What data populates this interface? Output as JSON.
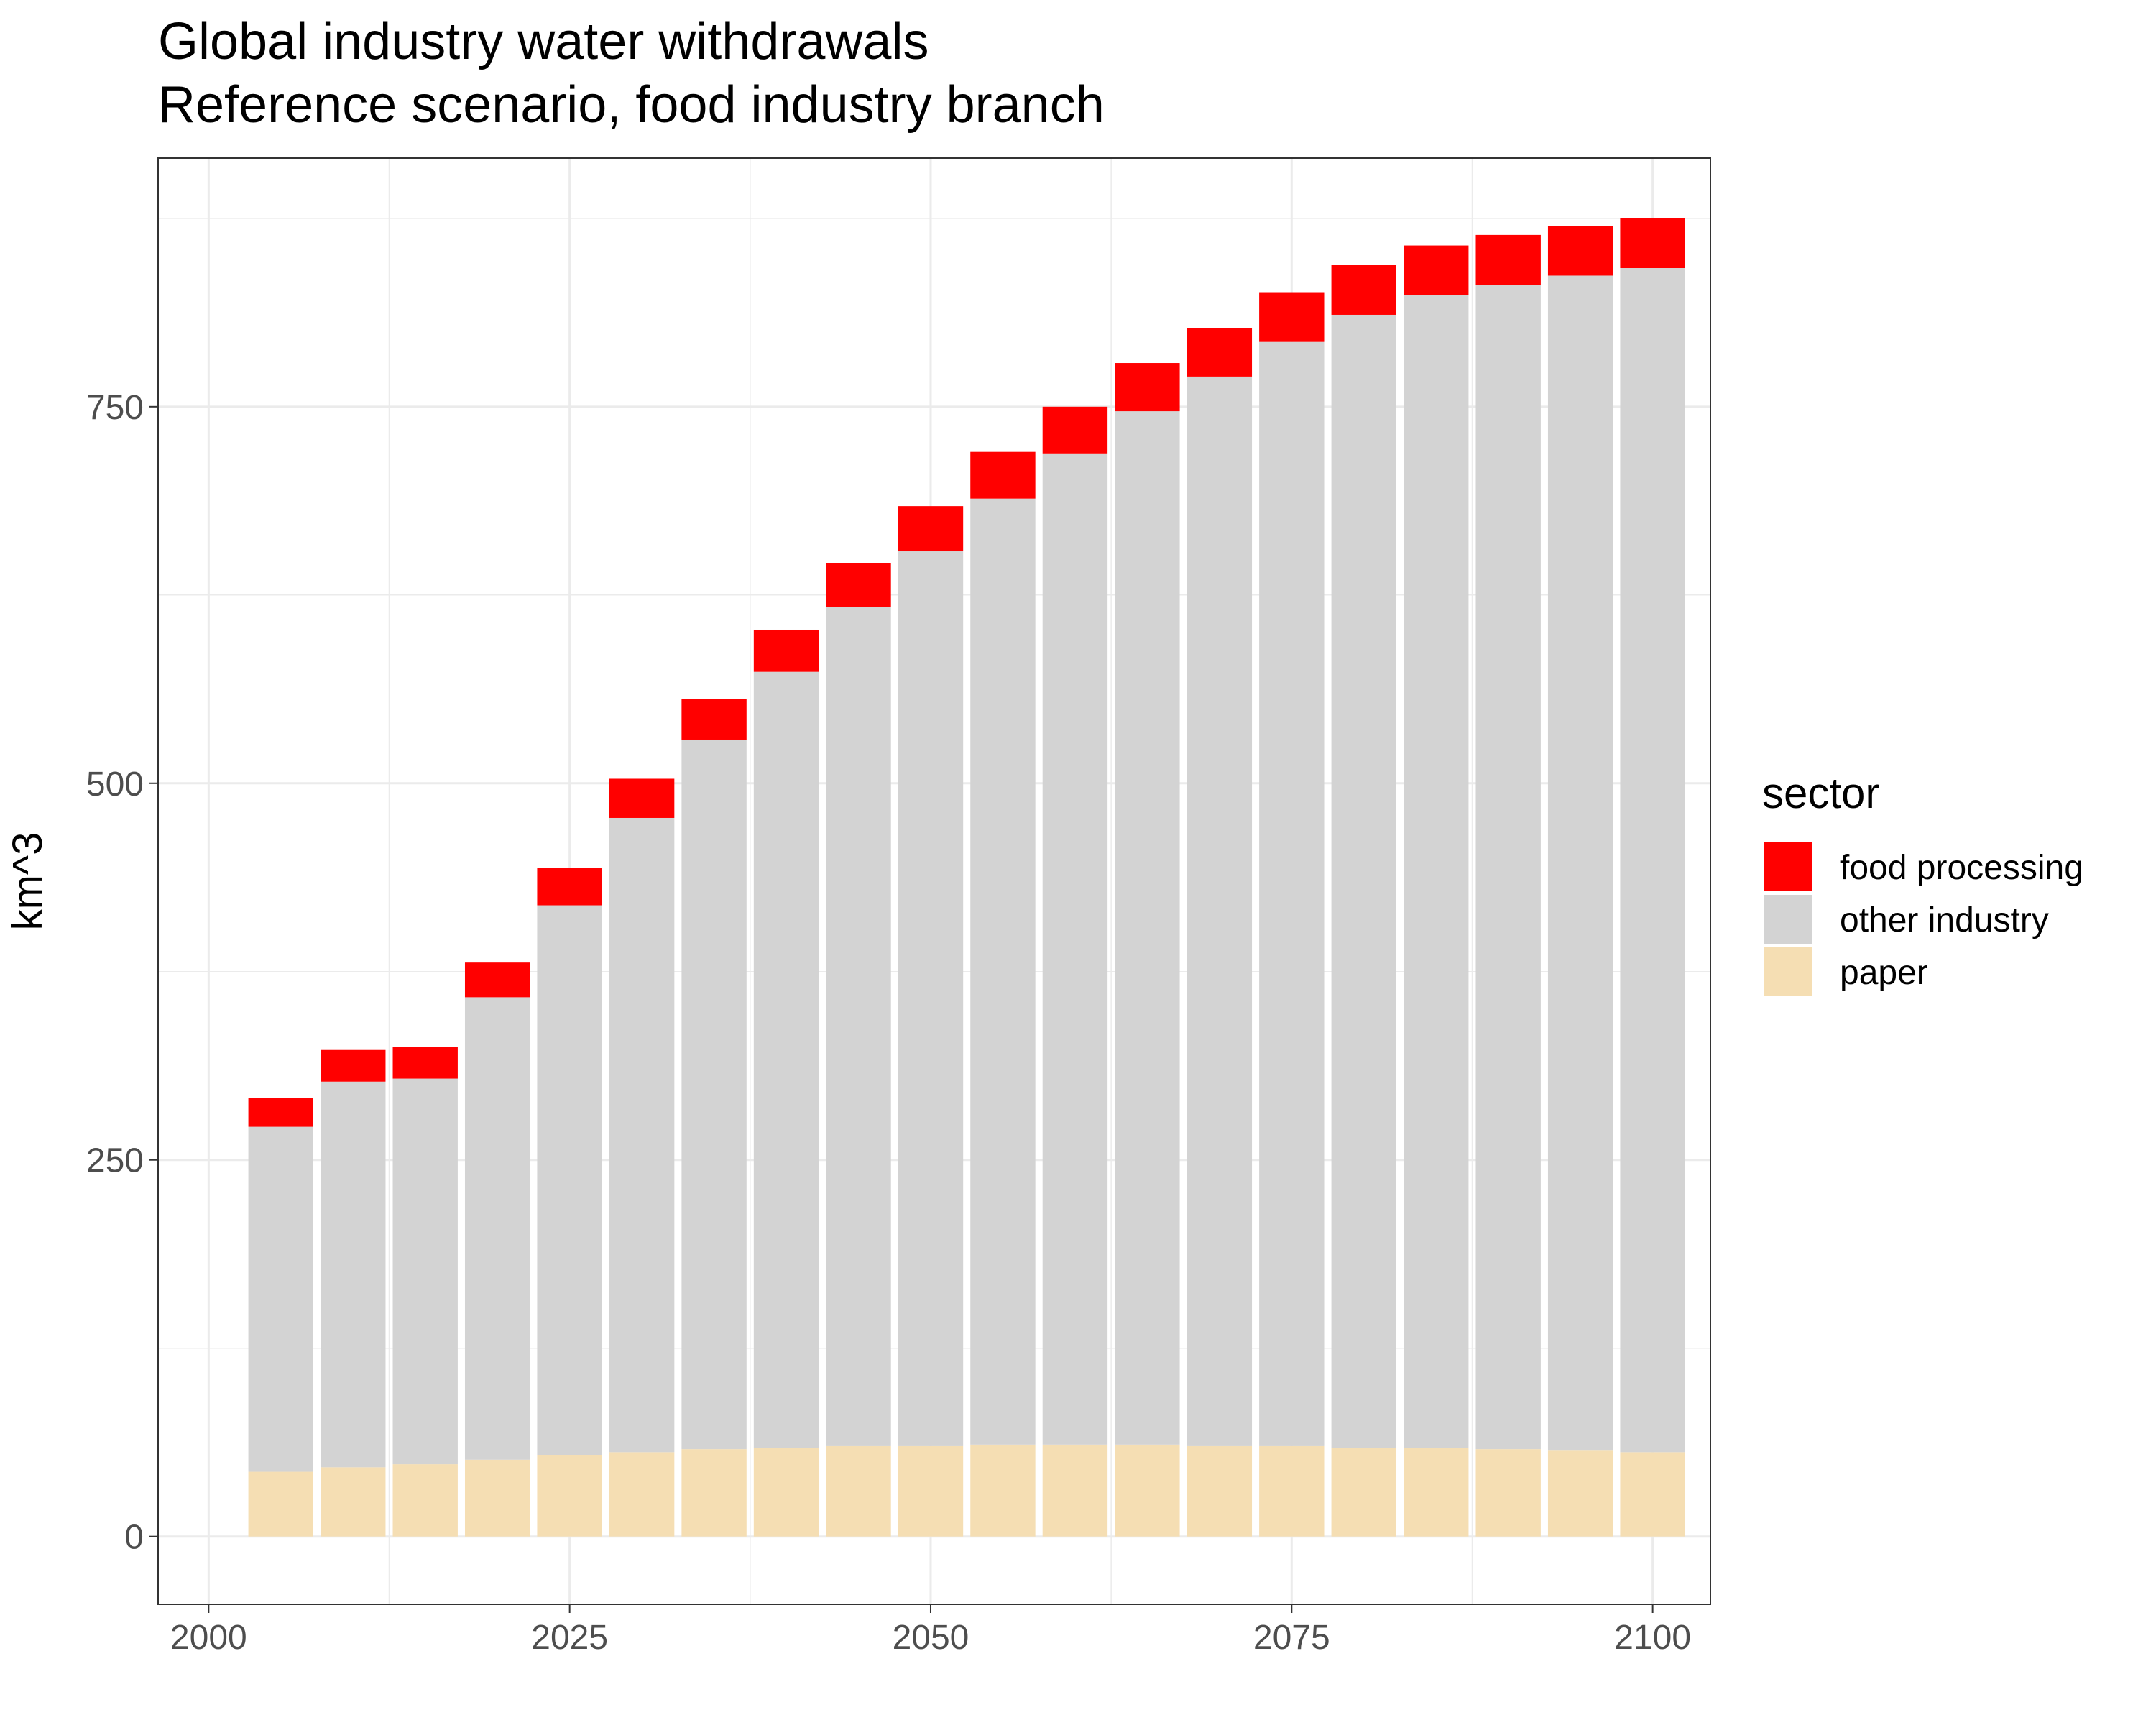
{
  "chart_data": {
    "type": "bar",
    "stacked": true,
    "title": "Global industry water withdrawals",
    "subtitle": "Reference scenario, food industry branch",
    "xlabel": "",
    "ylabel": "km^3",
    "x": [
      2005,
      2010,
      2015,
      2020,
      2025,
      2030,
      2035,
      2040,
      2045,
      2050,
      2055,
      2060,
      2065,
      2070,
      2075,
      2080,
      2085,
      2090,
      2095,
      2100
    ],
    "xlim": [
      1996.5,
      2104
    ],
    "ylim": [
      -45,
      915
    ],
    "xticks": [
      "2000",
      "2025",
      "2050",
      "2075",
      "2100"
    ],
    "yticks": [
      "0",
      "250",
      "500",
      "750"
    ],
    "grid": true,
    "legend_title": "sector",
    "legend_position": "right",
    "series": [
      {
        "name": "paper",
        "color": "#F5DEB3",
        "values": [
          43,
          46,
          48,
          51,
          54,
          56,
          58,
          59,
          60,
          60,
          61,
          61,
          61,
          60,
          60,
          59,
          59,
          58,
          57,
          56
        ]
      },
      {
        "name": "other industry",
        "color": "#D3D3D3",
        "values": [
          229,
          256,
          256,
          307,
          365,
          421,
          471,
          515,
          557,
          594,
          628,
          658,
          686,
          710,
          733,
          752,
          765,
          773,
          780,
          786
        ]
      },
      {
        "name": "food processing",
        "color": "#FF0000",
        "values": [
          19,
          21,
          21,
          23,
          25,
          26,
          27,
          28,
          29,
          30,
          31,
          31,
          32,
          32,
          33,
          33,
          33,
          33,
          33,
          33
        ]
      }
    ]
  }
}
